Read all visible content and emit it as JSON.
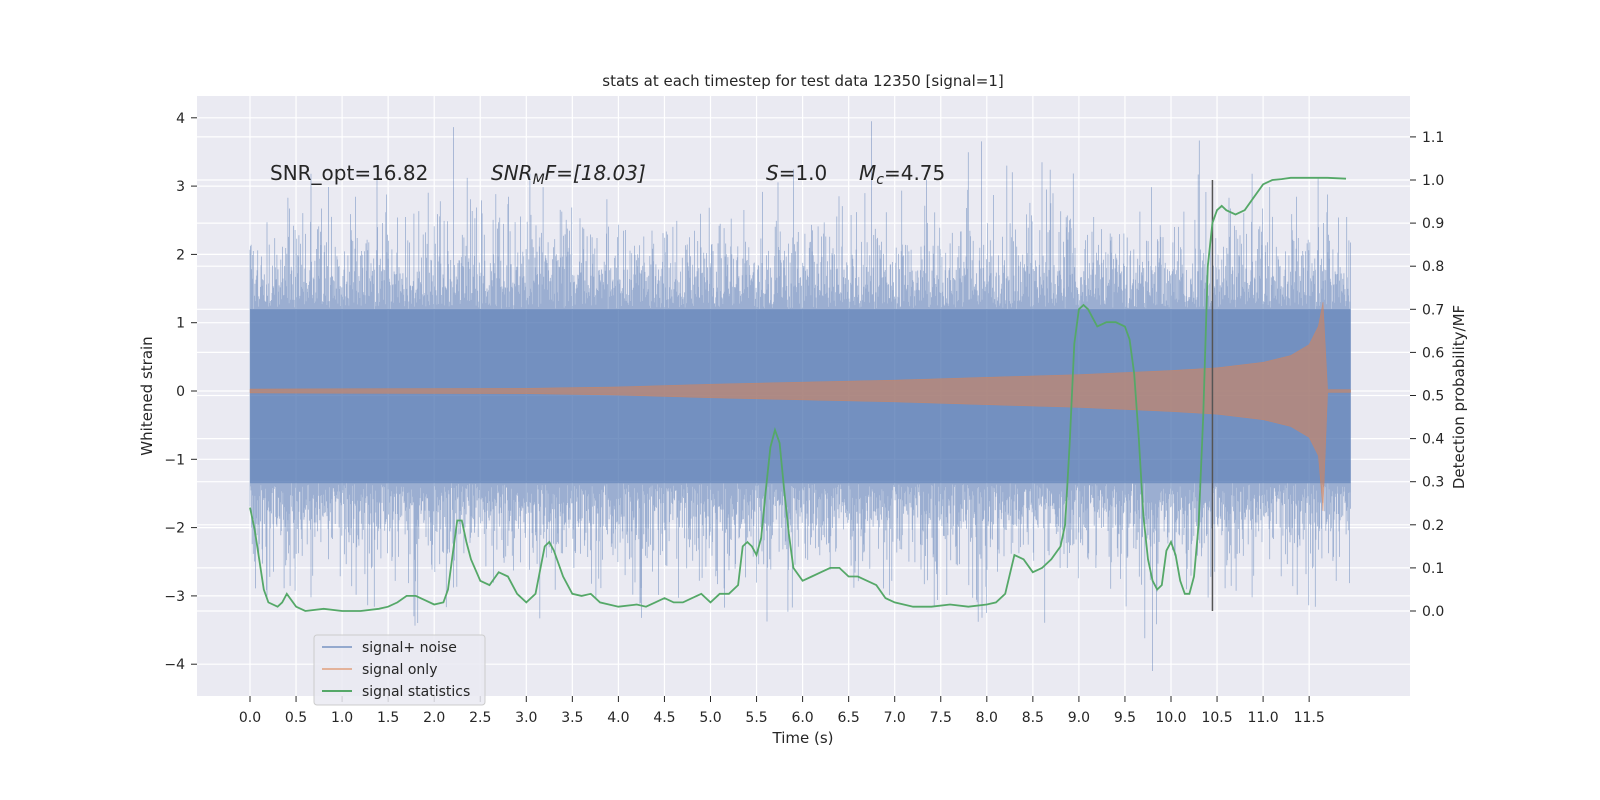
{
  "chart_data": {
    "type": "line",
    "title": "stats at each timestep for test data 12350 [signal=1]",
    "xlabel": "Time (s)",
    "ylabel": "Whitened strain",
    "y2label": "Detection probability/MF",
    "xlim": [
      -0.28,
      12.28
    ],
    "ylim": [
      -4.4,
      4.35
    ],
    "y2lim": [
      -0.19,
      1.21
    ],
    "x_ticks": [
      "0.0",
      "0.5",
      "1.0",
      "1.5",
      "2.0",
      "2.5",
      "3.0",
      "3.5",
      "4.0",
      "4.5",
      "5.0",
      "5.5",
      "6.0",
      "6.5",
      "7.0",
      "7.5",
      "8.0",
      "8.5",
      "9.0",
      "9.5",
      "10.0",
      "10.5",
      "11.0",
      "11.5"
    ],
    "y_ticks": [
      "4",
      "3",
      "2",
      "1",
      "0",
      "−1",
      "−2",
      "−3",
      "−4"
    ],
    "y2_ticks": [
      "1.1",
      "1.0",
      "0.9",
      "0.8",
      "0.7",
      "0.6",
      "0.5",
      "0.4",
      "0.3",
      "0.2",
      "0.1",
      "0.0"
    ],
    "grid": true,
    "legend_position": "lower-left",
    "annotations": {
      "snr_opt": "SNR_opt=16.82",
      "snr_mf_base": "SNR",
      "snr_mf_sub": "M",
      "snr_mf_rest": "F=[18.03]",
      "s_sym": "S",
      "s_val": "=1.0",
      "mc_base": "M",
      "mc_sub": "c",
      "mc_val": "=4.75"
    },
    "vertical_marker_x": 10.45,
    "series": [
      {
        "name": "signal+ noise",
        "color": "#4c72b0",
        "alpha": 0.5,
        "note_envelope": "dense noise time series, approx. |y| up to 2-3.9",
        "x_range": [
          0.0,
          11.95
        ]
      },
      {
        "name": "signal only",
        "color": "#dd8452",
        "alpha": 0.5,
        "chirp_envelope": {
          "x": [
            0.0,
            3.0,
            4.0,
            5.0,
            6.0,
            7.0,
            8.0,
            9.0,
            10.0,
            10.5,
            11.0,
            11.3,
            11.5,
            11.6,
            11.65,
            11.7,
            11.95
          ],
          "amplitude": [
            0.03,
            0.04,
            0.06,
            0.1,
            0.13,
            0.16,
            0.2,
            0.24,
            0.3,
            0.34,
            0.42,
            0.52,
            0.68,
            0.95,
            1.3,
            0.02,
            0.02
          ]
        }
      },
      {
        "name": "signal statistics",
        "color": "#55a868",
        "x": [
          0.0,
          0.05,
          0.1,
          0.15,
          0.2,
          0.3,
          0.35,
          0.4,
          0.5,
          0.6,
          0.8,
          1.0,
          1.2,
          1.4,
          1.5,
          1.6,
          1.7,
          1.8,
          1.9,
          2.0,
          2.1,
          2.15,
          2.2,
          2.25,
          2.3,
          2.35,
          2.4,
          2.5,
          2.6,
          2.7,
          2.8,
          2.9,
          3.0,
          3.1,
          3.2,
          3.25,
          3.3,
          3.4,
          3.5,
          3.6,
          3.7,
          3.8,
          4.0,
          4.2,
          4.3,
          4.4,
          4.5,
          4.6,
          4.7,
          4.8,
          4.9,
          5.0,
          5.1,
          5.2,
          5.3,
          5.35,
          5.4,
          5.45,
          5.5,
          5.55,
          5.6,
          5.65,
          5.7,
          5.75,
          5.8,
          5.85,
          5.9,
          6.0,
          6.1,
          6.2,
          6.3,
          6.4,
          6.5,
          6.6,
          6.7,
          6.8,
          6.9,
          7.0,
          7.2,
          7.4,
          7.6,
          7.8,
          8.0,
          8.1,
          8.2,
          8.3,
          8.4,
          8.5,
          8.6,
          8.7,
          8.8,
          8.85,
          8.9,
          8.95,
          9.0,
          9.05,
          9.1,
          9.15,
          9.2,
          9.3,
          9.4,
          9.5,
          9.55,
          9.6,
          9.65,
          9.7,
          9.75,
          9.8,
          9.85,
          9.9,
          9.95,
          10.0,
          10.05,
          10.1,
          10.15,
          10.2,
          10.25,
          10.3,
          10.35,
          10.4,
          10.45,
          10.5,
          10.55,
          10.6,
          10.7,
          10.8,
          10.9,
          11.0,
          11.1,
          11.2,
          11.3,
          11.5,
          11.7,
          11.9
        ],
        "values": [
          0.24,
          0.19,
          0.12,
          0.05,
          0.02,
          0.01,
          0.02,
          0.04,
          0.01,
          0.0,
          0.005,
          0.0,
          0.0,
          0.005,
          0.01,
          0.02,
          0.035,
          0.035,
          0.025,
          0.015,
          0.02,
          0.05,
          0.13,
          0.21,
          0.21,
          0.16,
          0.12,
          0.07,
          0.06,
          0.09,
          0.08,
          0.04,
          0.02,
          0.04,
          0.15,
          0.16,
          0.14,
          0.08,
          0.04,
          0.035,
          0.04,
          0.02,
          0.01,
          0.015,
          0.01,
          0.02,
          0.03,
          0.02,
          0.02,
          0.03,
          0.04,
          0.02,
          0.04,
          0.04,
          0.06,
          0.15,
          0.16,
          0.15,
          0.13,
          0.17,
          0.28,
          0.38,
          0.42,
          0.39,
          0.28,
          0.18,
          0.1,
          0.07,
          0.08,
          0.09,
          0.1,
          0.1,
          0.08,
          0.08,
          0.07,
          0.06,
          0.03,
          0.02,
          0.01,
          0.01,
          0.015,
          0.01,
          0.015,
          0.02,
          0.04,
          0.13,
          0.12,
          0.09,
          0.1,
          0.12,
          0.15,
          0.2,
          0.39,
          0.62,
          0.7,
          0.71,
          0.7,
          0.68,
          0.66,
          0.67,
          0.67,
          0.66,
          0.63,
          0.55,
          0.4,
          0.22,
          0.12,
          0.07,
          0.05,
          0.06,
          0.14,
          0.16,
          0.13,
          0.07,
          0.04,
          0.04,
          0.08,
          0.2,
          0.45,
          0.8,
          0.9,
          0.93,
          0.94,
          0.93,
          0.92,
          0.93,
          0.96,
          0.99,
          1.0,
          1.002,
          1.005,
          1.005,
          1.005,
          1.003
        ]
      }
    ]
  }
}
